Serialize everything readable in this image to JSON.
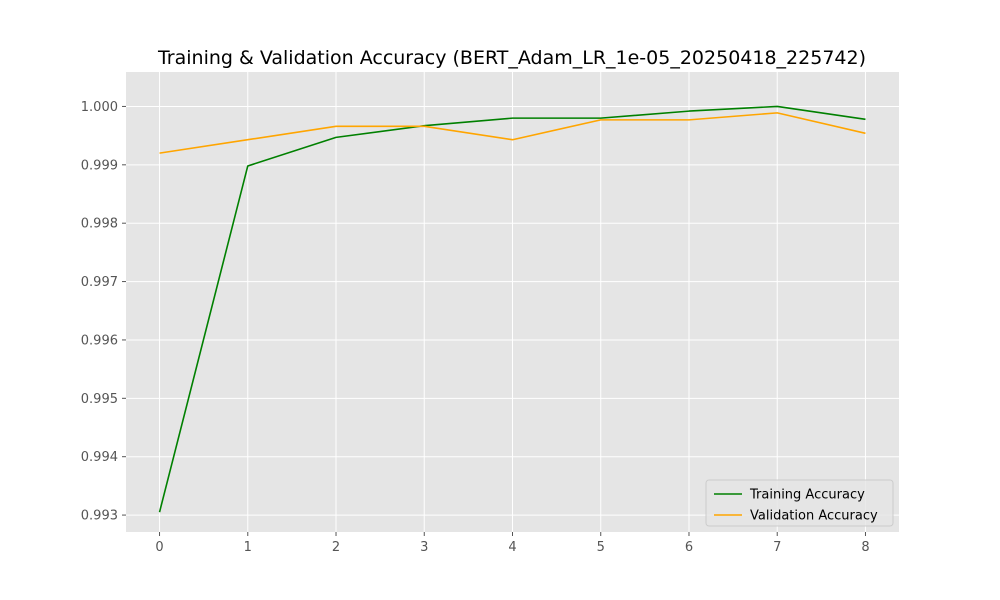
{
  "chart_data": {
    "type": "line",
    "title": "Training & Validation Accuracy (BERT_Adam_LR_1e-05_20250418_225742)",
    "xlabel": "",
    "ylabel": "",
    "x": [
      0,
      1,
      2,
      3,
      4,
      5,
      6,
      7,
      8
    ],
    "xlim": [
      -0.38,
      8.38
    ],
    "ylim": [
      0.99271,
      1.00059
    ],
    "x_ticks": [
      "0",
      "1",
      "2",
      "3",
      "4",
      "5",
      "6",
      "7",
      "8"
    ],
    "y_ticks": [
      "0.993",
      "0.994",
      "0.995",
      "0.996",
      "0.997",
      "0.998",
      "0.999",
      "1.000"
    ],
    "y_tick_values": [
      0.993,
      0.994,
      0.995,
      0.996,
      0.997,
      0.998,
      0.999,
      1.0
    ],
    "grid": true,
    "legend_position": "lower-right",
    "series": [
      {
        "name": "Training Accuracy",
        "color": "#008000",
        "values": [
          0.99305,
          0.99898,
          0.99947,
          0.99967,
          0.9998,
          0.9998,
          0.99992,
          1.0,
          0.99978
        ]
      },
      {
        "name": "Validation Accuracy",
        "color": "#ffa500",
        "values": [
          0.9992,
          0.99943,
          0.99966,
          0.99966,
          0.99943,
          0.99977,
          0.99977,
          0.99989,
          0.99954
        ]
      }
    ],
    "colors": {
      "plot_background": "#e5e5e5",
      "grid": "#ffffff"
    }
  }
}
